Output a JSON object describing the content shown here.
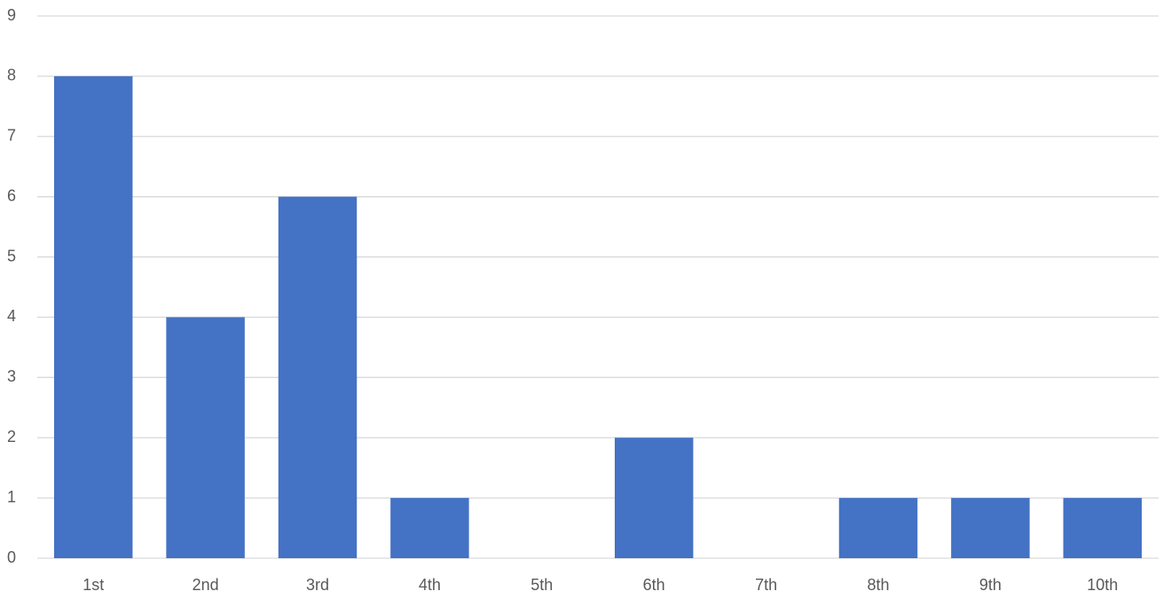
{
  "chart_data": {
    "type": "bar",
    "categories": [
      "1st",
      "2nd",
      "3rd",
      "4th",
      "5th",
      "6th",
      "7th",
      "8th",
      "9th",
      "10th"
    ],
    "values": [
      8,
      4,
      6,
      1,
      0,
      2,
      0,
      1,
      1,
      1
    ],
    "color": "#4472c4",
    "ylim": [
      0,
      9
    ],
    "yticks": [
      0,
      1,
      2,
      3,
      4,
      5,
      6,
      7,
      8,
      9
    ],
    "grid": true
  }
}
